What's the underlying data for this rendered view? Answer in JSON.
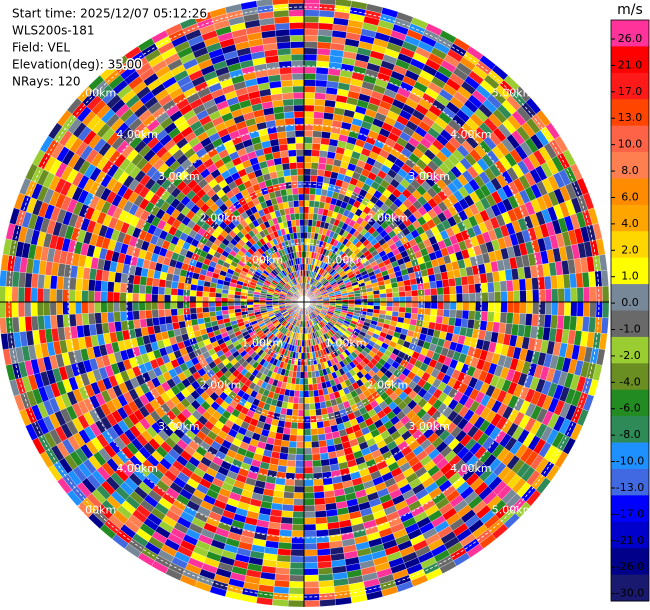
{
  "chart_data": {
    "type": "ppi",
    "info_lines": [
      "Start time: 2025/12/07 05:12:26",
      "WLS200s-181",
      "Field: VEL",
      "Elevation(deg): 35.00",
      "NRays: 120"
    ],
    "colorbar": {
      "title": "m/s",
      "ticks": [
        {
          "value": 26,
          "label": "26.0"
        },
        {
          "value": 21,
          "label": "21.0"
        },
        {
          "value": 17,
          "label": "17.0"
        },
        {
          "value": 13,
          "label": "13.0"
        },
        {
          "value": 10,
          "label": "10.0"
        },
        {
          "value": 8,
          "label": "8.0"
        },
        {
          "value": 6,
          "label": "6.0"
        },
        {
          "value": 4,
          "label": "4.0"
        },
        {
          "value": 2,
          "label": "2.0"
        },
        {
          "value": 1,
          "label": "1.0"
        },
        {
          "value": 0,
          "label": "0.0"
        },
        {
          "value": -1,
          "label": "-1.0"
        },
        {
          "value": -2,
          "label": "-2.0"
        },
        {
          "value": -4,
          "label": "-4.0"
        },
        {
          "value": -6,
          "label": "-6.0"
        },
        {
          "value": -8,
          "label": "-8.0"
        },
        {
          "value": -10,
          "label": "-10.0"
        },
        {
          "value": -13,
          "label": "-13.0"
        },
        {
          "value": -17,
          "label": "-17.0"
        },
        {
          "value": -21,
          "label": "-21.0"
        },
        {
          "value": -26,
          "label": "-26.0"
        },
        {
          "value": -30,
          "label": "-30.0"
        }
      ],
      "colors": [
        "#ff3399",
        "#ff0000",
        "#ff1a1a",
        "#ff4500",
        "#ff6347",
        "#ff7f50",
        "#ff8c00",
        "#ffa500",
        "#ffd700",
        "#ffff00",
        "#778899",
        "#696969",
        "#9acd32",
        "#6b8e23",
        "#228b22",
        "#2e8b57",
        "#1e90ff",
        "#4169e1",
        "#0000ff",
        "#0000cd",
        "#00008b",
        "#191970"
      ]
    },
    "rlim": [
      0,
      5.17
    ],
    "range_rings": [
      {
        "value": 1,
        "label": "1.00km"
      },
      {
        "value": 2,
        "label": "2.00km"
      },
      {
        "value": 3,
        "label": "3.00km"
      },
      {
        "value": 4,
        "label": "4.00km"
      },
      {
        "value": 5,
        "label": "5.00km"
      }
    ]
  }
}
